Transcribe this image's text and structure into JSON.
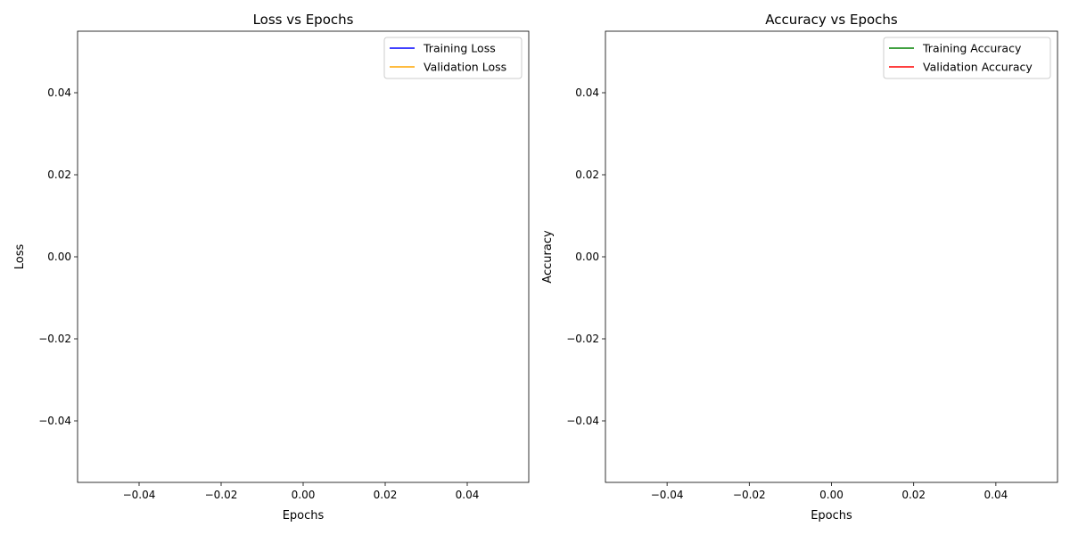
{
  "chart_data": [
    {
      "type": "line",
      "title": "Loss vs Epochs",
      "xlabel": "Epochs",
      "ylabel": "Loss",
      "xlim": [
        -0.055,
        0.055
      ],
      "ylim": [
        -0.055,
        0.055
      ],
      "xticks": [
        "−0.04",
        "−0.02",
        "0.00",
        "0.02",
        "0.04"
      ],
      "yticks": [
        "−0.04",
        "−0.02",
        "0.00",
        "0.02",
        "0.04"
      ],
      "grid": false,
      "legend_position": "upper right",
      "series": [
        {
          "name": "Training Loss",
          "color": "#0000ff",
          "x": [],
          "y": []
        },
        {
          "name": "Validation Loss",
          "color": "#ffa500",
          "x": [],
          "y": []
        }
      ]
    },
    {
      "type": "line",
      "title": "Accuracy vs Epochs",
      "xlabel": "Epochs",
      "ylabel": "Accuracy",
      "xlim": [
        -0.055,
        0.055
      ],
      "ylim": [
        -0.055,
        0.055
      ],
      "xticks": [
        "−0.04",
        "−0.02",
        "0.00",
        "0.02",
        "0.04"
      ],
      "yticks": [
        "−0.04",
        "−0.02",
        "0.00",
        "0.02",
        "0.04"
      ],
      "grid": false,
      "legend_position": "upper right",
      "series": [
        {
          "name": "Training Accuracy",
          "color": "#008000",
          "x": [],
          "y": []
        },
        {
          "name": "Validation Accuracy",
          "color": "#ff0000",
          "x": [],
          "y": []
        }
      ]
    }
  ]
}
